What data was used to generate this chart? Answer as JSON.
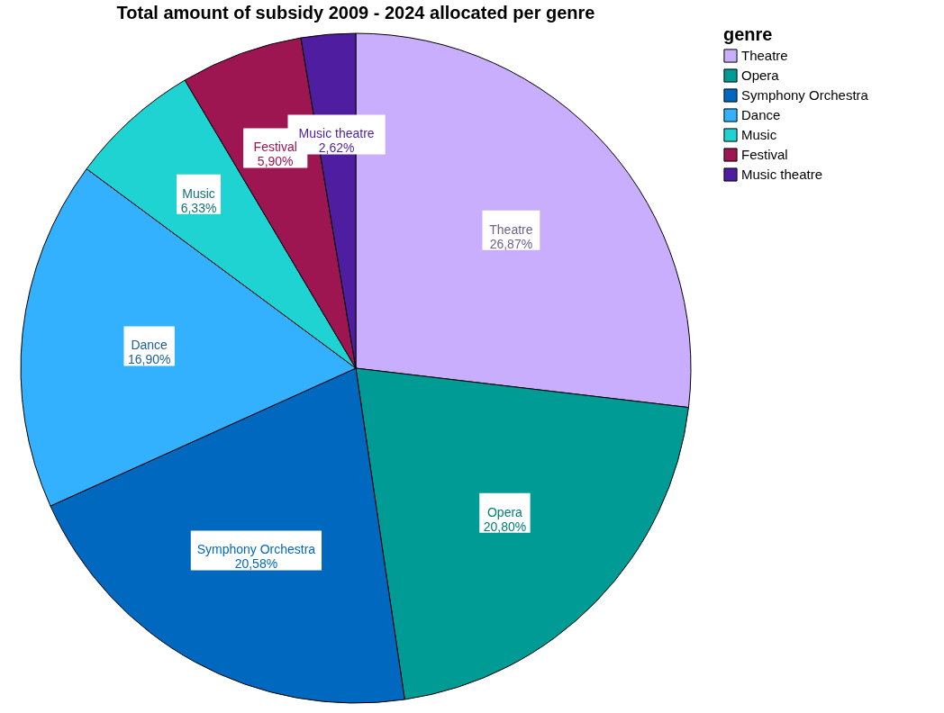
{
  "chart_data": {
    "type": "pie",
    "title": "Total amount of subsidy 2009 - 2024 allocated per genre",
    "legend_title": "genre",
    "legend": "top right",
    "categories": [
      "Theatre",
      "Opera",
      "Symphony Orchestra",
      "Dance",
      "Music",
      "Festival",
      "Music theatre"
    ],
    "values": [
      26.87,
      20.8,
      20.58,
      16.9,
      6.33,
      5.9,
      2.62
    ],
    "value_labels": [
      "26,87%",
      "20,80%",
      "20,58%",
      "16,90%",
      "6,33%",
      "5,90%",
      "2,62%"
    ],
    "colors": [
      "#c9aefe",
      "#009b95",
      "#0068bf",
      "#33b1ff",
      "#20d3d3",
      "#9e1651",
      "#4f1ea0"
    ]
  }
}
